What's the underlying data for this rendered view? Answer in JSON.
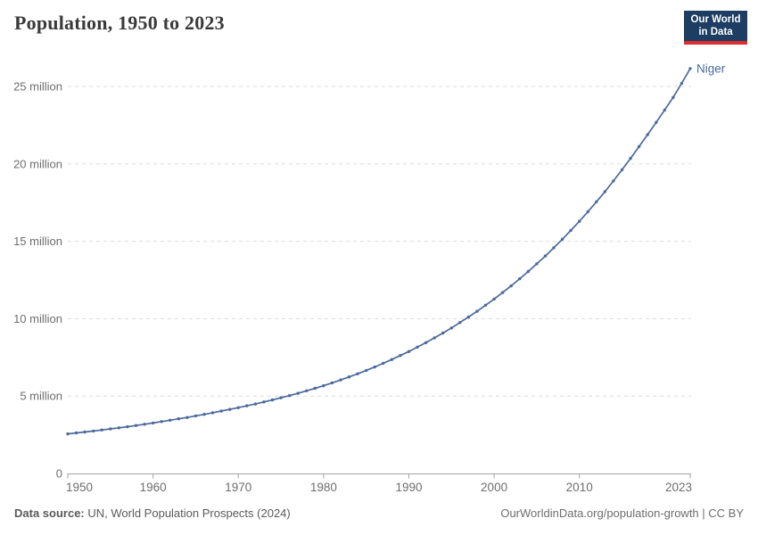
{
  "header": {
    "title": "Population, 1950 to 2023"
  },
  "logo": {
    "line1": "Our World",
    "line2": "in Data",
    "bg_color": "#1d3d63",
    "accent_color": "#dc2e2e"
  },
  "chart_data": {
    "type": "line",
    "title": "Population, 1950 to 2023",
    "xlabel": "",
    "ylabel": "",
    "unit": "million",
    "grid": "horizontal-dashed",
    "legend_position": "end-of-line-label",
    "ylim": [
      0,
      26.5
    ],
    "xlim": [
      1950,
      2023
    ],
    "yticks": [
      {
        "value": 0,
        "label": "0"
      },
      {
        "value": 5,
        "label": "5 million"
      },
      {
        "value": 10,
        "label": "10 million"
      },
      {
        "value": 15,
        "label": "15 million"
      },
      {
        "value": 20,
        "label": "20 million"
      },
      {
        "value": 25,
        "label": "25 million"
      }
    ],
    "xticks": [
      {
        "value": 1950,
        "label": "1950",
        "align": "start"
      },
      {
        "value": 1960,
        "label": "1960",
        "align": "middle"
      },
      {
        "value": 1970,
        "label": "1970",
        "align": "middle"
      },
      {
        "value": 1980,
        "label": "1980",
        "align": "middle"
      },
      {
        "value": 1990,
        "label": "1990",
        "align": "middle"
      },
      {
        "value": 2000,
        "label": "2000",
        "align": "middle"
      },
      {
        "value": 2010,
        "label": "2010",
        "align": "middle"
      },
      {
        "value": 2023,
        "label": "2023",
        "align": "end"
      }
    ],
    "x": [
      1950,
      1951,
      1952,
      1953,
      1954,
      1955,
      1956,
      1957,
      1958,
      1959,
      1960,
      1961,
      1962,
      1963,
      1964,
      1965,
      1966,
      1967,
      1968,
      1969,
      1970,
      1971,
      1972,
      1973,
      1974,
      1975,
      1976,
      1977,
      1978,
      1979,
      1980,
      1981,
      1982,
      1983,
      1984,
      1985,
      1986,
      1987,
      1988,
      1989,
      1990,
      1991,
      1992,
      1993,
      1994,
      1995,
      1996,
      1997,
      1998,
      1999,
      2000,
      2001,
      2002,
      2003,
      2004,
      2005,
      2006,
      2007,
      2008,
      2009,
      2010,
      2011,
      2012,
      2013,
      2014,
      2015,
      2016,
      2017,
      2018,
      2019,
      2020,
      2021,
      2022,
      2023
    ],
    "series": [
      {
        "name": "Niger",
        "color": "#4c6a9c",
        "values_millions": [
          2.56,
          2.62,
          2.68,
          2.74,
          2.81,
          2.88,
          2.95,
          3.02,
          3.1,
          3.18,
          3.26,
          3.35,
          3.44,
          3.53,
          3.62,
          3.72,
          3.82,
          3.92,
          4.03,
          4.14,
          4.25,
          4.37,
          4.49,
          4.62,
          4.75,
          4.89,
          5.03,
          5.18,
          5.34,
          5.5,
          5.67,
          5.85,
          6.04,
          6.24,
          6.44,
          6.66,
          6.88,
          7.12,
          7.36,
          7.62,
          7.88,
          8.16,
          8.45,
          8.76,
          9.07,
          9.4,
          9.75,
          10.11,
          10.48,
          10.87,
          11.27,
          11.69,
          12.12,
          12.58,
          13.05,
          13.54,
          14.05,
          14.58,
          15.13,
          15.7,
          16.29,
          16.91,
          17.55,
          18.21,
          18.9,
          19.62,
          20.36,
          21.12,
          21.89,
          22.68,
          23.48,
          24.3,
          25.21,
          26.16
        ]
      }
    ]
  },
  "footer": {
    "source_label": "Data source:",
    "source_text": " UN, World Population Prospects (2024)",
    "credit": "OurWorldinData.org/population-growth | CC BY"
  },
  "colors": {
    "series_blue": "#4c6a9c",
    "gridline": "#dcdcdc",
    "axis": "#a3a3a3",
    "tick_text": "#6e6e6e",
    "title_text": "#3a3a3a"
  }
}
